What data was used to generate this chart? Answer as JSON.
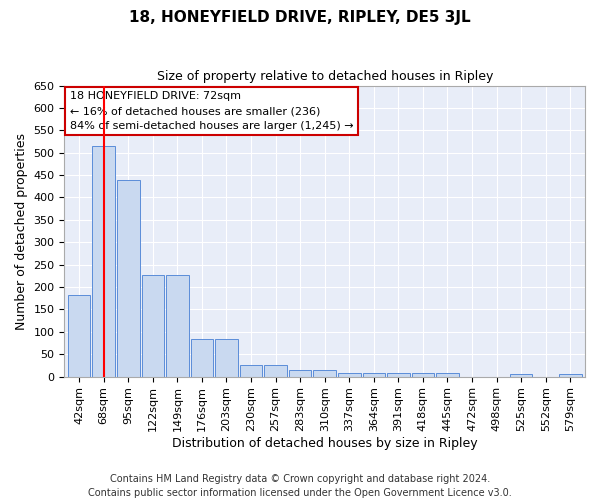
{
  "title": "18, HONEYFIELD DRIVE, RIPLEY, DE5 3JL",
  "subtitle": "Size of property relative to detached houses in Ripley",
  "xlabel": "Distribution of detached houses by size in Ripley",
  "ylabel": "Number of detached properties",
  "bar_labels": [
    "42sqm",
    "68sqm",
    "95sqm",
    "122sqm",
    "149sqm",
    "176sqm",
    "203sqm",
    "230sqm",
    "257sqm",
    "283sqm",
    "310sqm",
    "337sqm",
    "364sqm",
    "391sqm",
    "418sqm",
    "445sqm",
    "472sqm",
    "498sqm",
    "525sqm",
    "552sqm",
    "579sqm"
  ],
  "bar_values": [
    183,
    516,
    440,
    226,
    226,
    84,
    84,
    27,
    27,
    14,
    14,
    8,
    8,
    8,
    8,
    8,
    0,
    0,
    5,
    0,
    5
  ],
  "bar_color": "#c9d9f0",
  "bar_edge_color": "#5b8dd9",
  "red_line_x": 1,
  "ylim": [
    0,
    650
  ],
  "yticks": [
    0,
    50,
    100,
    150,
    200,
    250,
    300,
    350,
    400,
    450,
    500,
    550,
    600,
    650
  ],
  "annotation_title": "18 HONEYFIELD DRIVE: 72sqm",
  "annotation_line1": "← 16% of detached houses are smaller (236)",
  "annotation_line2": "84% of semi-detached houses are larger (1,245) →",
  "footnote1": "Contains HM Land Registry data © Crown copyright and database right 2024.",
  "footnote2": "Contains public sector information licensed under the Open Government Licence v3.0.",
  "fig_bg_color": "#ffffff",
  "plot_bg_color": "#e8edf8",
  "grid_color": "#ffffff",
  "annotation_bg": "#ffffff",
  "annotation_edge": "#cc0000",
  "title_fontsize": 11,
  "subtitle_fontsize": 9,
  "ylabel_fontsize": 9,
  "xlabel_fontsize": 9,
  "tick_fontsize": 8,
  "annot_fontsize": 8,
  "footnote_fontsize": 7
}
